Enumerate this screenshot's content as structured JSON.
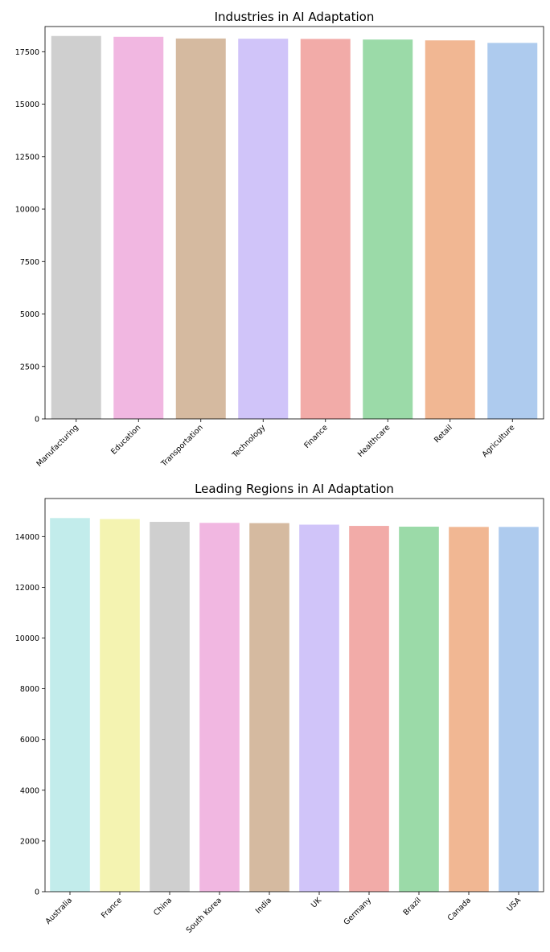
{
  "chart_data": [
    {
      "type": "bar",
      "title": "Industries in AI Adaptation",
      "xlabel": "",
      "ylabel": "",
      "categories": [
        "Manufacturing",
        "Education",
        "Transportation",
        "Technology",
        "Finance",
        "Healthcare",
        "Retail",
        "Agriculture"
      ],
      "values": [
        18250,
        18210,
        18130,
        18120,
        18110,
        18080,
        18040,
        17920
      ],
      "colors": [
        "#cfcfcf",
        "#f1b7e1",
        "#d5baa0",
        "#d0c4f9",
        "#f2aba8",
        "#9bdaa8",
        "#f1b793",
        "#aecbee"
      ],
      "ylim": [
        0,
        18700
      ],
      "yticks": [
        0,
        2500,
        5000,
        7500,
        10000,
        12500,
        15000,
        17500
      ],
      "ytick_labels": [
        "0",
        "2500",
        "5000",
        "7500",
        "10000",
        "12500",
        "15000",
        "17500"
      ],
      "grid": false,
      "legend": "none"
    },
    {
      "type": "bar",
      "title": "Leading Regions in AI Adaptation",
      "xlabel": "",
      "ylabel": "",
      "categories": [
        "Australia",
        "France",
        "China",
        "South Korea",
        "India",
        "UK",
        "Germany",
        "Brazil",
        "Canada",
        "USA"
      ],
      "values": [
        14730,
        14690,
        14580,
        14540,
        14530,
        14470,
        14420,
        14390,
        14380,
        14380
      ],
      "colors": [
        "#c2eceb",
        "#f4f3b1",
        "#cfcfcf",
        "#f1b7e1",
        "#d5baa0",
        "#d0c4f9",
        "#f2aba8",
        "#9bdaa8",
        "#f1b793",
        "#aecbee"
      ],
      "ylim": [
        0,
        15500
      ],
      "yticks": [
        0,
        2000,
        4000,
        6000,
        8000,
        10000,
        12000,
        14000
      ],
      "ytick_labels": [
        "0",
        "2000",
        "4000",
        "6000",
        "8000",
        "10000",
        "12000",
        "14000"
      ],
      "grid": false,
      "legend": "none"
    }
  ]
}
